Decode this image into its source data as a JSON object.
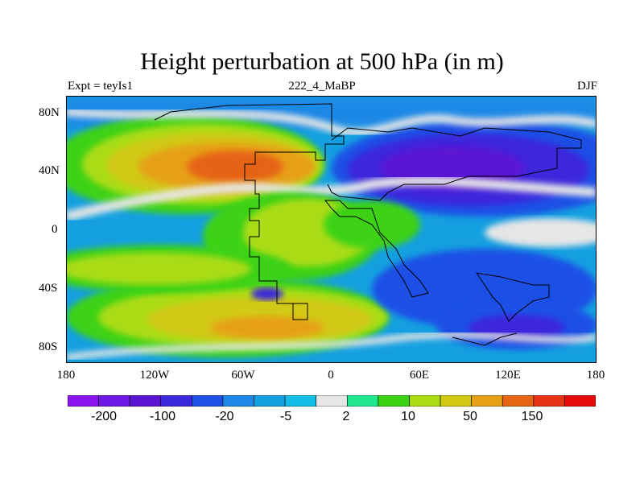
{
  "title": "Height perturbation at 500 hPa (in m)",
  "subtitle_left": "Expt = teyIs1",
  "subtitle_center": "222_4_MaBP",
  "subtitle_right": "DJF",
  "lat_labels": [
    "80N",
    "40N",
    "0",
    "40S",
    "80S"
  ],
  "lon_labels": [
    "180",
    "120W",
    "60W",
    "0",
    "60E",
    "120E",
    "180"
  ],
  "colorbar": {
    "labels": [
      "-200",
      "-100",
      "-20",
      "-5",
      "2",
      "10",
      "50",
      "150"
    ],
    "colors": [
      "#8a14f0",
      "#7019e6",
      "#5a14d2",
      "#3c28dc",
      "#1e50e6",
      "#1e88e6",
      "#14a0e0",
      "#14bee6",
      "#e6e6e6",
      "#1ee68c",
      "#3cd214",
      "#aadc14",
      "#d2c814",
      "#e6a014",
      "#e66414",
      "#e63214",
      "#e60a0a"
    ]
  }
}
